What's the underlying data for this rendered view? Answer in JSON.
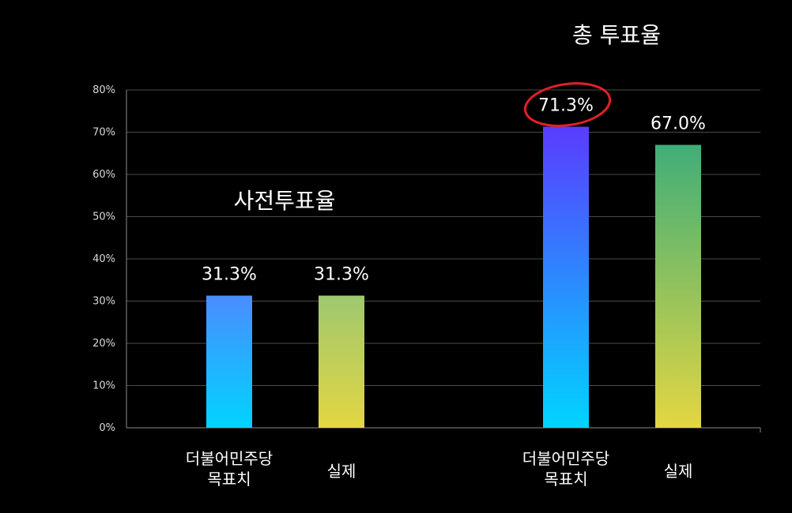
{
  "chart_data": {
    "type": "bar",
    "ylim": [
      0,
      80
    ],
    "y_ticks": [
      "0%",
      "10%",
      "20%",
      "30%",
      "40%",
      "50%",
      "60%",
      "70%",
      "80%"
    ],
    "grid": true,
    "groups": [
      {
        "title": "사전투표율",
        "categories": [
          {
            "label_lines": [
              "더불어민주당",
              "목표치"
            ],
            "value": 31.3,
            "value_label": "31.3%",
            "gradient": [
              "#00d4ff",
              "#4a8cff"
            ]
          },
          {
            "label_lines": [
              "실제"
            ],
            "value": 31.3,
            "value_label": "31.3%",
            "gradient": [
              "#e4d642",
              "#9ec870"
            ]
          }
        ]
      },
      {
        "title": "총 투표율",
        "categories": [
          {
            "label_lines": [
              "더불어민주당",
              "목표치"
            ],
            "value": 71.3,
            "value_label": "71.3%",
            "gradient": [
              "#00d4ff",
              "#5a3cff"
            ],
            "highlight": true
          },
          {
            "label_lines": [
              "실제"
            ],
            "value": 67.0,
            "value_label": "67.0%",
            "gradient": [
              "#e4d642",
              "#3fae78"
            ]
          }
        ]
      }
    ],
    "highlight_color": "#e0202a"
  }
}
